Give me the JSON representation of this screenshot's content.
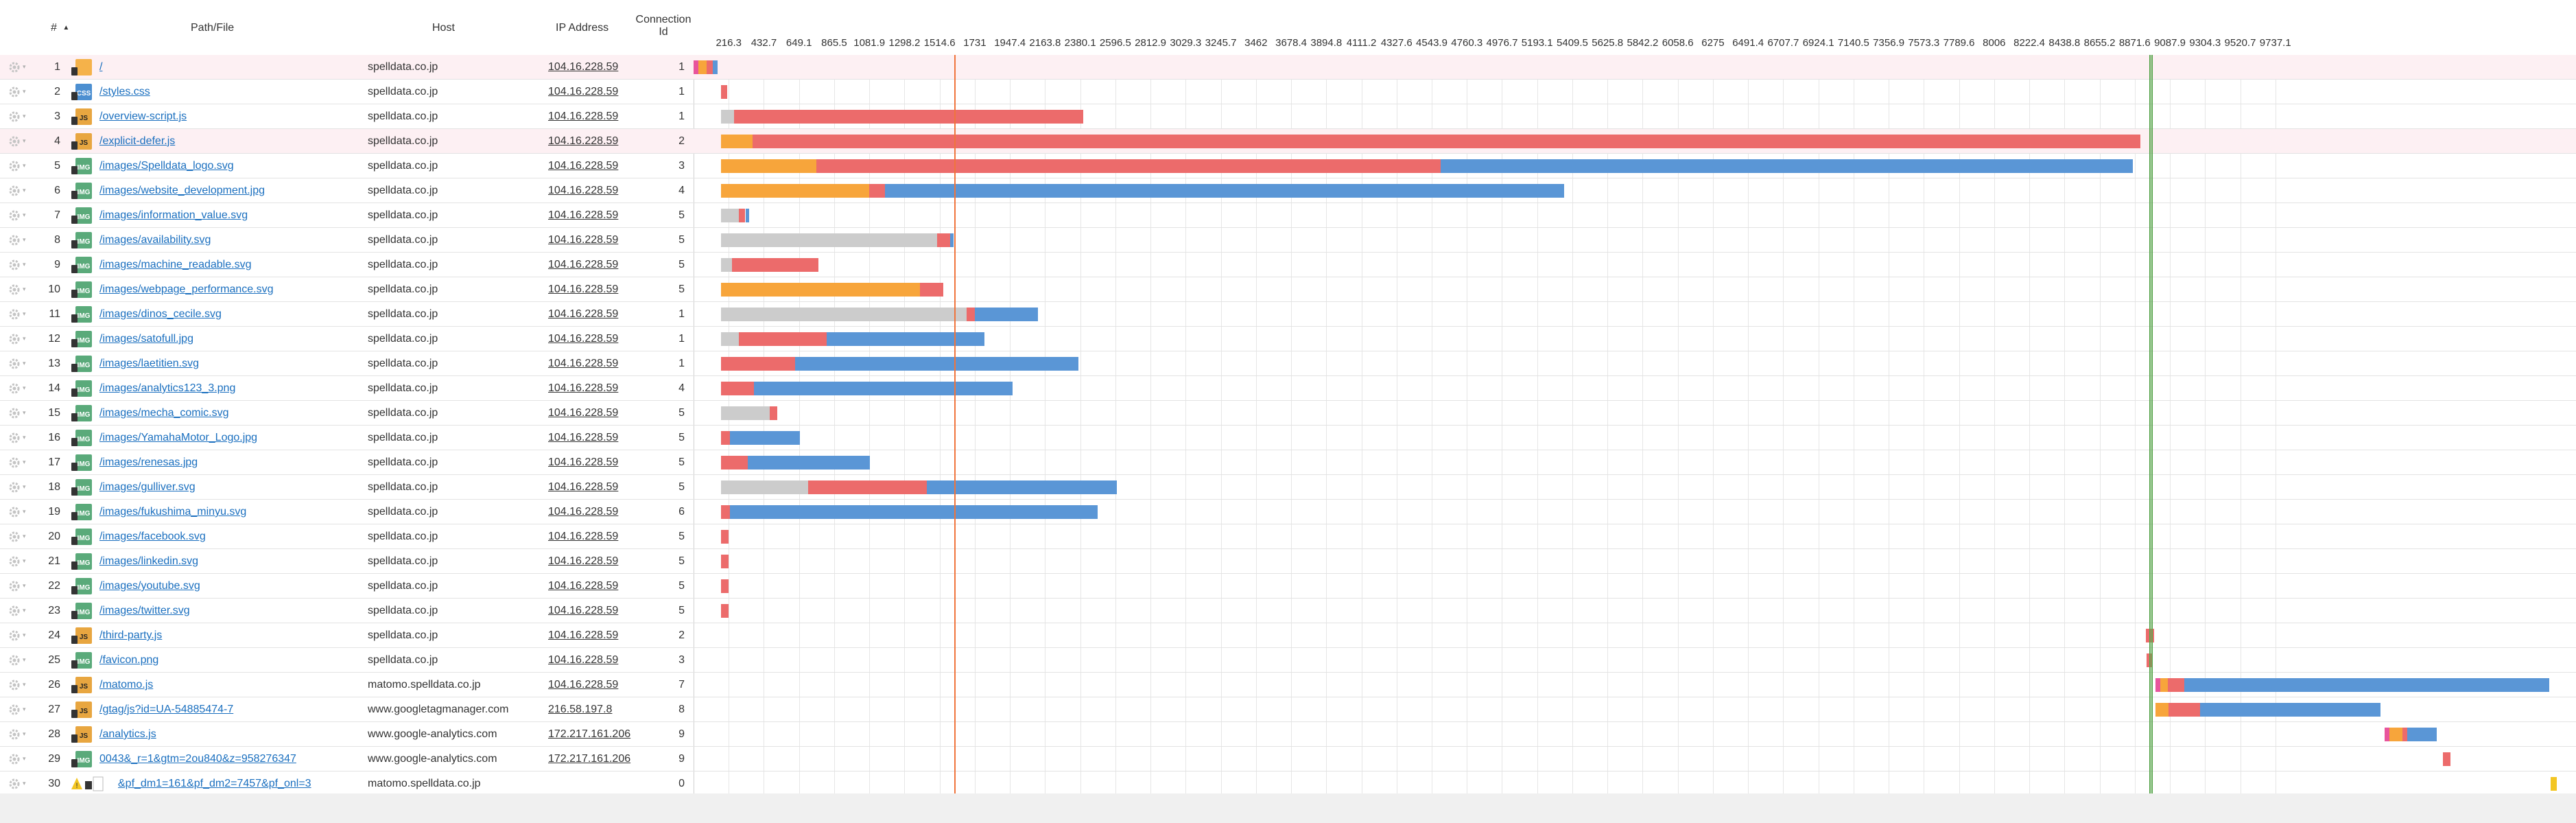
{
  "header": {
    "index_label": "#",
    "path_label": "Path/File",
    "host_label": "Host",
    "ip_label": "IP Address",
    "connection_label_line1": "Connection",
    "connection_label_line2": "Id"
  },
  "timeline": {
    "unit": "ms",
    "ticks": [
      "216.3",
      "432.7",
      "649.1",
      "865.5",
      "1081.9",
      "1298.2",
      "1514.6",
      "1731",
      "1947.4",
      "2163.8",
      "2380.1",
      "2596.5",
      "2812.9",
      "3029.3",
      "3245.7",
      "3462",
      "3678.4",
      "3894.8",
      "4111.2",
      "4327.6",
      "4543.9",
      "4760.3",
      "4976.7",
      "5193.1",
      "5409.5",
      "5625.8",
      "5842.2",
      "6058.6",
      "6275",
      "6491.4",
      "6707.7",
      "6924.1",
      "7140.5",
      "7356.9",
      "7573.3",
      "7789.6",
      "8006",
      "8222.4",
      "8438.8",
      "8655.2",
      "8871.6",
      "9087.9",
      "9304.3",
      "9520.7",
      "9737.1"
    ],
    "tick_step_ms": 216.38,
    "dom_content_loaded_ms": 1606,
    "on_load_ms": 8960,
    "on_load_2_ms": 8975,
    "segment_colors": {
      "blocked": "#cccccc",
      "dns": "#9b59b6",
      "connect": "#f7a53b",
      "ssl": "#e8559c",
      "wait": "#ec6b6b",
      "receive": "#5a96d6",
      "pending": "#f3c623"
    },
    "dom_content_loaded_color": "#f0743c",
    "on_load_color": "#5aa64e"
  },
  "requests": [
    {
      "index": "1",
      "type": "html",
      "path": "/",
      "host": "spelldata.co.jp",
      "ip": "104.16.228.59",
      "conn": "1",
      "highlight": true,
      "segments": [
        [
          "ssl",
          0,
          30
        ],
        [
          "connect",
          30,
          80
        ],
        [
          "wait",
          80,
          120
        ],
        [
          "receive",
          120,
          150
        ]
      ]
    },
    {
      "index": "2",
      "type": "css",
      "path": "/styles.css",
      "host": "spelldata.co.jp",
      "ip": "104.16.228.59",
      "conn": "1",
      "highlight": false,
      "segments": [
        [
          "wait",
          168,
          205
        ]
      ]
    },
    {
      "index": "3",
      "type": "js",
      "path": "/overview-script.js",
      "host": "spelldata.co.jp",
      "ip": "104.16.228.59",
      "conn": "1",
      "highlight": false,
      "segments": [
        [
          "blocked",
          168,
          250
        ],
        [
          "wait",
          250,
          2400
        ]
      ]
    },
    {
      "index": "4",
      "type": "js",
      "path": "/explicit-defer.js",
      "host": "spelldata.co.jp",
      "ip": "104.16.228.59",
      "conn": "2",
      "highlight": true,
      "segments": [
        [
          "connect",
          168,
          365
        ],
        [
          "wait",
          365,
          8910
        ]
      ]
    },
    {
      "index": "5",
      "type": "img",
      "path": "/images/Spelldata_logo.svg",
      "host": "spelldata.co.jp",
      "ip": "104.16.228.59",
      "conn": "3",
      "highlight": false,
      "segments": [
        [
          "connect",
          168,
          755
        ],
        [
          "wait",
          755,
          4600
        ],
        [
          "receive",
          4600,
          8860
        ]
      ]
    },
    {
      "index": "6",
      "type": "img",
      "path": "/images/website_development.jpg",
      "host": "spelldata.co.jp",
      "ip": "104.16.228.59",
      "conn": "4",
      "highlight": false,
      "segments": [
        [
          "connect",
          168,
          1080
        ],
        [
          "wait",
          1080,
          1180
        ],
        [
          "receive",
          1180,
          5360
        ]
      ]
    },
    {
      "index": "7",
      "type": "img",
      "path": "/images/information_value.svg",
      "host": "spelldata.co.jp",
      "ip": "104.16.228.59",
      "conn": "5",
      "highlight": false,
      "segments": [
        [
          "blocked",
          168,
          280
        ],
        [
          "wait",
          280,
          320
        ],
        [
          "receive",
          320,
          340
        ]
      ]
    },
    {
      "index": "8",
      "type": "img",
      "path": "/images/availability.svg",
      "host": "spelldata.co.jp",
      "ip": "104.16.228.59",
      "conn": "5",
      "highlight": false,
      "segments": [
        [
          "blocked",
          168,
          1500
        ],
        [
          "wait",
          1500,
          1580
        ],
        [
          "receive",
          1580,
          1600
        ]
      ]
    },
    {
      "index": "9",
      "type": "img",
      "path": "/images/machine_readable.svg",
      "host": "spelldata.co.jp",
      "ip": "104.16.228.59",
      "conn": "5",
      "highlight": false,
      "segments": [
        [
          "blocked",
          168,
          235
        ],
        [
          "wait",
          235,
          765
        ]
      ]
    },
    {
      "index": "10",
      "type": "img",
      "path": "/images/webpage_performance.svg",
      "host": "spelldata.co.jp",
      "ip": "104.16.228.59",
      "conn": "5",
      "highlight": false,
      "segments": [
        [
          "connect",
          168,
          1395
        ],
        [
          "wait",
          1395,
          1540
        ]
      ]
    },
    {
      "index": "11",
      "type": "img",
      "path": "/images/dinos_cecile.svg",
      "host": "spelldata.co.jp",
      "ip": "104.16.228.59",
      "conn": "1",
      "highlight": false,
      "segments": [
        [
          "blocked",
          168,
          1680
        ],
        [
          "wait",
          1680,
          1730
        ],
        [
          "receive",
          1730,
          2120
        ]
      ]
    },
    {
      "index": "12",
      "type": "img",
      "path": "/images/satofull.jpg",
      "host": "spelldata.co.jp",
      "ip": "104.16.228.59",
      "conn": "1",
      "highlight": false,
      "segments": [
        [
          "blocked",
          168,
          280
        ],
        [
          "wait",
          280,
          820
        ],
        [
          "receive",
          820,
          1790
        ]
      ]
    },
    {
      "index": "13",
      "type": "img",
      "path": "/images/laetitien.svg",
      "host": "spelldata.co.jp",
      "ip": "104.16.228.59",
      "conn": "1",
      "highlight": false,
      "segments": [
        [
          "wait",
          168,
          625
        ],
        [
          "receive",
          625,
          2370
        ]
      ]
    },
    {
      "index": "14",
      "type": "img",
      "path": "/images/analytics123_3.png",
      "host": "spelldata.co.jp",
      "ip": "104.16.228.59",
      "conn": "4",
      "highlight": false,
      "segments": [
        [
          "wait",
          168,
          370
        ],
        [
          "receive",
          370,
          1960
        ]
      ]
    },
    {
      "index": "15",
      "type": "img",
      "path": "/images/mecha_comic.svg",
      "host": "spelldata.co.jp",
      "ip": "104.16.228.59",
      "conn": "5",
      "highlight": false,
      "segments": [
        [
          "blocked",
          168,
          470
        ],
        [
          "wait",
          470,
          515
        ]
      ]
    },
    {
      "index": "16",
      "type": "img",
      "path": "/images/YamahaMotor_Logo.jpg",
      "host": "spelldata.co.jp",
      "ip": "104.16.228.59",
      "conn": "5",
      "highlight": false,
      "segments": [
        [
          "wait",
          168,
          225
        ],
        [
          "receive",
          225,
          655
        ]
      ]
    },
    {
      "index": "17",
      "type": "img",
      "path": "/images/renesas.jpg",
      "host": "spelldata.co.jp",
      "ip": "104.16.228.59",
      "conn": "5",
      "highlight": false,
      "segments": [
        [
          "wait",
          168,
          335
        ],
        [
          "receive",
          335,
          1085
        ]
      ]
    },
    {
      "index": "18",
      "type": "img",
      "path": "/images/gulliver.svg",
      "host": "spelldata.co.jp",
      "ip": "104.16.228.59",
      "conn": "5",
      "highlight": false,
      "segments": [
        [
          "blocked",
          168,
          705
        ],
        [
          "wait",
          705,
          1435
        ],
        [
          "receive",
          1435,
          2605
        ]
      ]
    },
    {
      "index": "19",
      "type": "img",
      "path": "/images/fukushima_minyu.svg",
      "host": "spelldata.co.jp",
      "ip": "104.16.228.59",
      "conn": "6",
      "highlight": false,
      "segments": [
        [
          "wait",
          168,
          225
        ],
        [
          "receive",
          225,
          2490
        ]
      ]
    },
    {
      "index": "20",
      "type": "img",
      "path": "/images/facebook.svg",
      "host": "spelldata.co.jp",
      "ip": "104.16.228.59",
      "conn": "5",
      "highlight": false,
      "segments": [
        [
          "wait",
          168,
          215
        ]
      ]
    },
    {
      "index": "21",
      "type": "img",
      "path": "/images/linkedin.svg",
      "host": "spelldata.co.jp",
      "ip": "104.16.228.59",
      "conn": "5",
      "highlight": false,
      "segments": [
        [
          "wait",
          168,
          215
        ]
      ]
    },
    {
      "index": "22",
      "type": "img",
      "path": "/images/youtube.svg",
      "host": "spelldata.co.jp",
      "ip": "104.16.228.59",
      "conn": "5",
      "highlight": false,
      "segments": [
        [
          "wait",
          168,
          215
        ]
      ]
    },
    {
      "index": "23",
      "type": "img",
      "path": "/images/twitter.svg",
      "host": "spelldata.co.jp",
      "ip": "104.16.228.59",
      "conn": "5",
      "highlight": false,
      "segments": [
        [
          "wait",
          168,
          215
        ]
      ]
    },
    {
      "index": "24",
      "type": "js",
      "path": "/third-party.js",
      "host": "spelldata.co.jp",
      "ip": "104.16.228.59",
      "conn": "2",
      "highlight": false,
      "segments": [
        [
          "wait",
          8940,
          8990
        ]
      ]
    },
    {
      "index": "25",
      "type": "img",
      "path": "/favicon.png",
      "host": "spelldata.co.jp",
      "ip": "104.16.228.59",
      "conn": "3",
      "highlight": false,
      "segments": [
        [
          "wait",
          8945,
          8985
        ]
      ]
    },
    {
      "index": "26",
      "type": "js",
      "path": "/matomo.js",
      "host": "matomo.spelldata.co.jp",
      "ip": "104.16.228.59",
      "conn": "7",
      "highlight": false,
      "segments": [
        [
          "ssl",
          9000,
          9030
        ],
        [
          "connect",
          9030,
          9075
        ],
        [
          "wait",
          9075,
          9175
        ],
        [
          "receive",
          9175,
          11420
        ]
      ]
    },
    {
      "index": "27",
      "type": "js",
      "path": "/gtag/js?id=UA-54885474-7",
      "host": "www.googletagmanager.com",
      "ip": "216.58.197.8",
      "conn": "8",
      "highlight": false,
      "segments": [
        [
          "connect",
          9000,
          9080
        ],
        [
          "wait",
          9080,
          9275
        ],
        [
          "receive",
          9275,
          10385
        ]
      ]
    },
    {
      "index": "28",
      "type": "js",
      "path": "/analytics.js",
      "host": "www.google-analytics.com",
      "ip": "172.217.161.206",
      "conn": "9",
      "highlight": false,
      "segments": [
        [
          "ssl",
          10410,
          10440
        ],
        [
          "connect",
          10440,
          10520
        ],
        [
          "wait",
          10520,
          10550
        ],
        [
          "receive",
          10550,
          10730
        ]
      ]
    },
    {
      "index": "29",
      "type": "img",
      "path": "0043&_r=1&gtm=2ou840&z=958276347",
      "host": "www.google-analytics.com",
      "ip": "172.217.161.206",
      "conn": "9",
      "highlight": false,
      "segments": [
        [
          "wait",
          10770,
          10815
        ]
      ]
    },
    {
      "index": "30",
      "type": "blocked",
      "path": "&pf_dm1=161&pf_dm2=7457&pf_onl=3",
      "host": "matomo.spelldata.co.jp",
      "ip": "",
      "conn": "0",
      "highlight": false,
      "segments": [
        [
          "pending",
          11430,
          11470
        ]
      ]
    }
  ]
}
